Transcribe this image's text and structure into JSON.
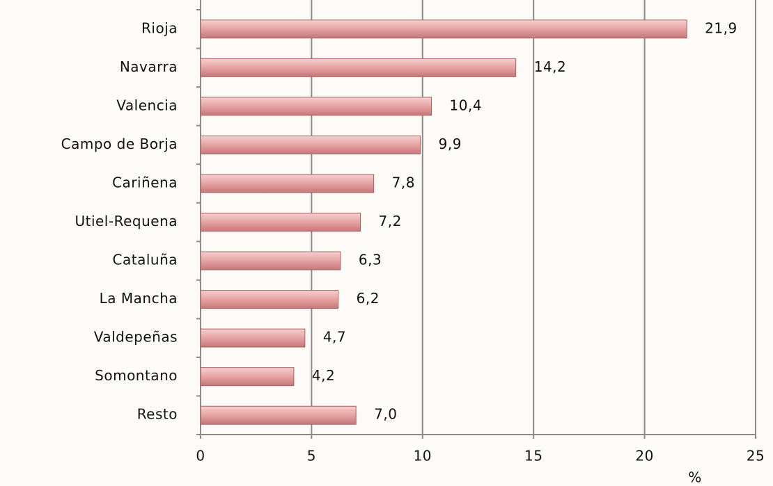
{
  "chart_data": {
    "type": "bar",
    "orientation": "horizontal",
    "categories": [
      "Rioja",
      "Navarra",
      "Valencia",
      "Campo de Borja",
      "Cariñena",
      "Utiel-Requena",
      "Cataluña",
      "La Mancha",
      "Valdepeñas",
      "Somontano",
      "Resto"
    ],
    "values": [
      21.9,
      14.2,
      10.4,
      9.9,
      7.8,
      7.2,
      6.3,
      6.2,
      4.7,
      4.2,
      7.0
    ],
    "value_labels": [
      "21,9",
      "14,2",
      "10,4",
      "9,9",
      "7,8",
      "7,2",
      "6,3",
      "6,2",
      "4,7",
      "4,2",
      "7,0"
    ],
    "color": "#e09a9a",
    "xlim": [
      0,
      25
    ],
    "xticks": [
      0,
      5,
      10,
      15,
      20,
      25
    ],
    "xlabel": "%",
    "grid": true
  }
}
